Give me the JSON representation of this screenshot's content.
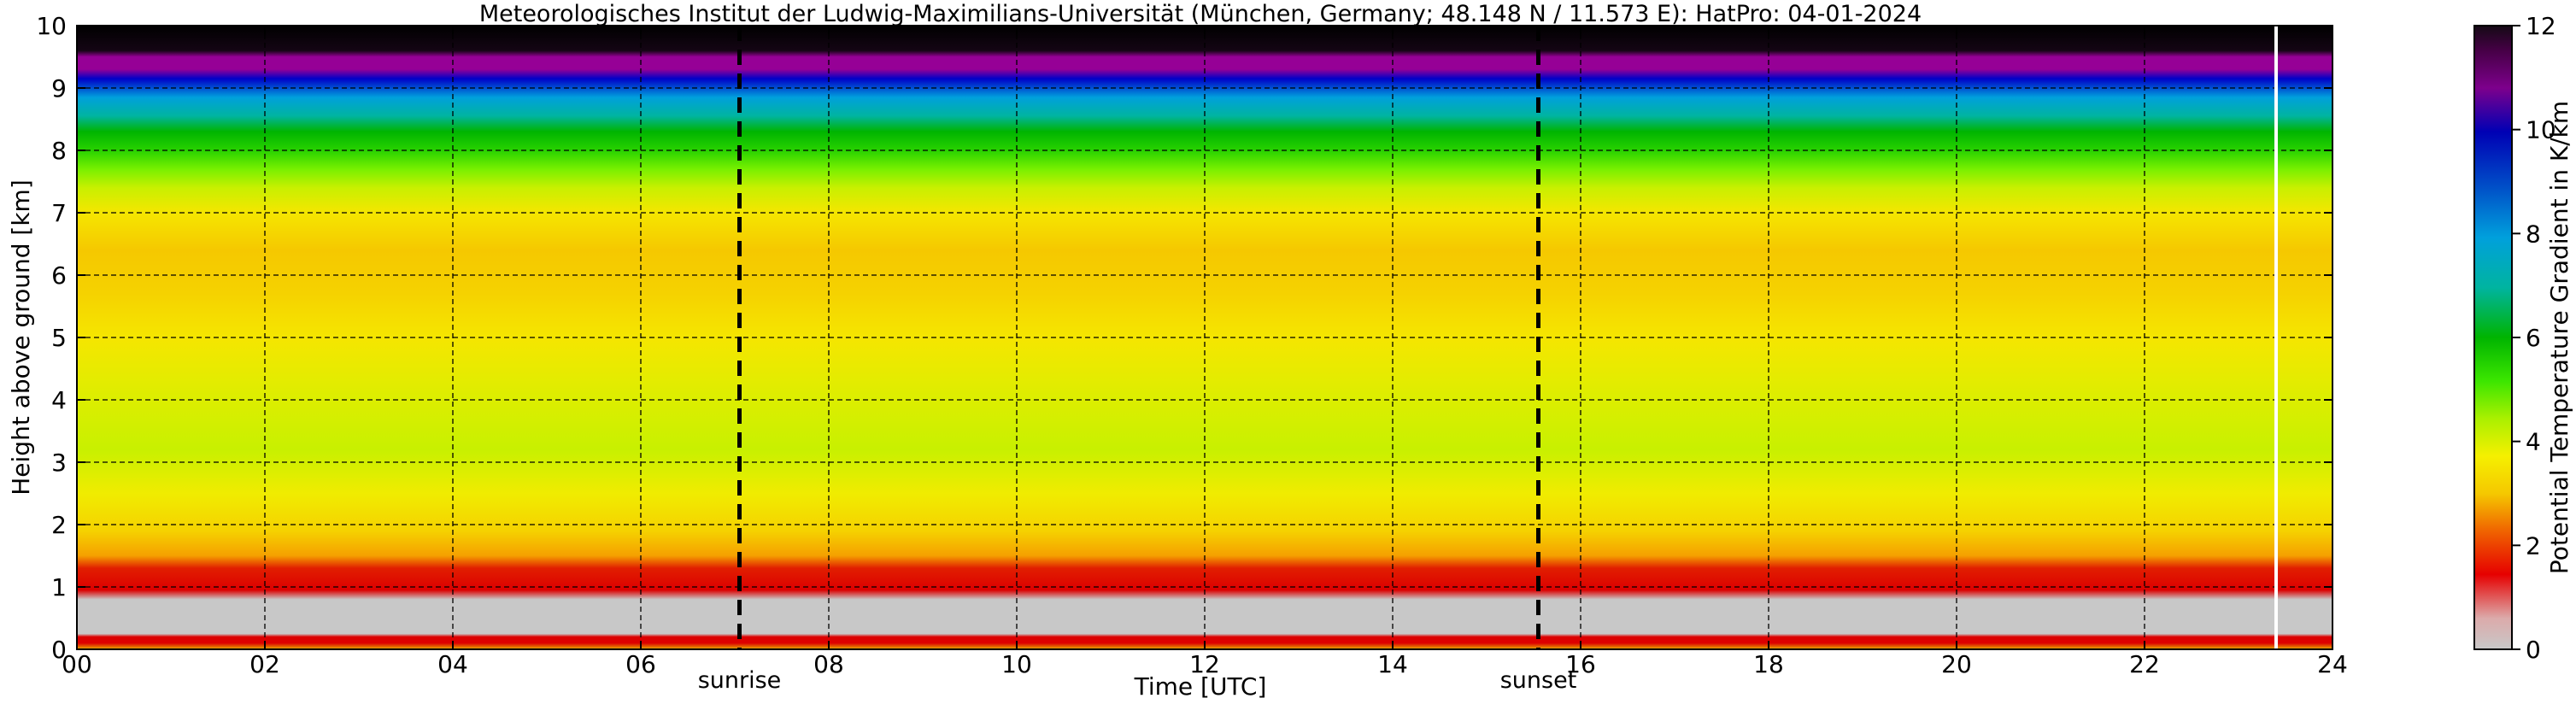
{
  "chart_data": {
    "type": "heatmap",
    "title": "Meteorologisches Institut der Ludwig-Maximilians-Universität (München, Germany; 48.148 N / 11.573 E):    HatPro: 04-01-2024",
    "xlabel": "Time [UTC]",
    "ylabel": "Height above ground [km]",
    "xlim": [
      0,
      24
    ],
    "ylim": [
      0,
      10
    ],
    "x_ticks": [
      "00",
      "02",
      "04",
      "06",
      "08",
      "10",
      "12",
      "14",
      "16",
      "18",
      "20",
      "22",
      "24"
    ],
    "y_ticks": [
      "0",
      "1",
      "2",
      "3",
      "4",
      "5",
      "6",
      "7",
      "8",
      "9",
      "10"
    ],
    "grid": true,
    "colorbar": {
      "label": "Potential Temperature Gradient in K/km",
      "range": [
        0,
        12
      ],
      "ticks": [
        "0",
        "2",
        "4",
        "6",
        "8",
        "10",
        "12"
      ],
      "colors": [
        "#c8c8c8",
        "#dc0000",
        "#f5a000",
        "#f5e600",
        "#a0f000",
        "#00b400",
        "#00a0c8",
        "#0000c8",
        "#960096",
        "#1e0a1e"
      ]
    },
    "markers": [
      {
        "label": "sunrise",
        "time": 7.05
      },
      {
        "label": "sunset",
        "time": 15.55
      }
    ],
    "end_of_data_line": 23.4,
    "height_profile_km": [
      0.0,
      0.1,
      0.2,
      0.5,
      0.9,
      1.3,
      1.7,
      2.2,
      3.0,
      4.0,
      5.0,
      6.0,
      6.8,
      7.4,
      7.8,
      8.1,
      8.4,
      8.75,
      9.05,
      9.35,
      10.0
    ],
    "gradient_profile_K_per_km": [
      2.5,
      0.5,
      1.2,
      0.3,
      0.3,
      1.0,
      2.7,
      3.6,
      4.1,
      3.8,
      3.4,
      3.1,
      3.6,
      4.6,
      5.6,
      6.2,
      7.4,
      8.7,
      10.3,
      11.4,
      12.0
    ]
  }
}
